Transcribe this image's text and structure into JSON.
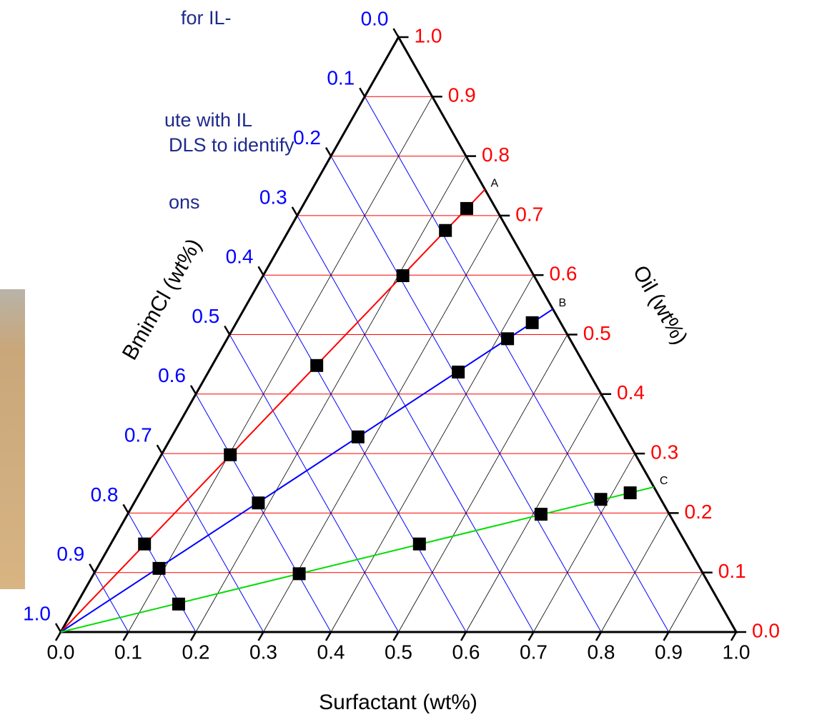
{
  "slide_text": [
    "for IL-",
    "ute with IL",
    "DLS to identify",
    "ons"
  ],
  "chart_data": {
    "type": "ternary",
    "axes": {
      "surfactant": {
        "label": "Surfactant (wt%)",
        "color": "#000000",
        "ticks": [
          {
            "value": 0,
            "label": "0.0"
          },
          0.1,
          0.2,
          0.3,
          0.4,
          0.5,
          0.6,
          0.7,
          0.8,
          0.9,
          {
            "value": 1,
            "label": "1.0"
          }
        ]
      },
      "bmimcl": {
        "label": "BmimCl (wt%)",
        "color": "#0000ff",
        "ticks": [
          {
            "value": 0,
            "label": "0.0"
          },
          0.1,
          0.2,
          0.3,
          0.4,
          0.5,
          0.6,
          0.7,
          0.8,
          0.9,
          {
            "value": 1,
            "label": "1.0"
          }
        ]
      },
      "oil": {
        "label": "Oil (wt%)",
        "color": "#ff0000",
        "ticks": [
          {
            "value": 0,
            "label": "0.0"
          },
          0.1,
          0.2,
          0.3,
          0.4,
          0.5,
          0.6,
          0.7,
          0.8,
          0.9,
          {
            "value": 1,
            "label": "1.0"
          }
        ]
      }
    },
    "grid": true,
    "series": [
      {
        "name": "A",
        "color": "#ff0000",
        "surfactant": [
          0.05,
          0.102,
          0.155,
          0.207,
          0.232,
          0.245
        ],
        "oil": [
          0.148,
          0.298,
          0.448,
          0.599,
          0.675,
          0.712
        ]
      },
      {
        "name": "B",
        "color": "#0000ff",
        "surfactant": [
          0.092,
          0.184,
          0.276,
          0.37,
          0.415,
          0.438
        ],
        "oil": [
          0.107,
          0.217,
          0.328,
          0.437,
          0.493,
          0.52
        ]
      },
      {
        "name": "C",
        "color": "#00dd00",
        "surfactant": [
          0.151,
          0.304,
          0.457,
          0.612,
          0.688,
          0.726
        ],
        "oil": [
          0.047,
          0.098,
          0.148,
          0.198,
          0.223,
          0.234
        ]
      }
    ]
  }
}
